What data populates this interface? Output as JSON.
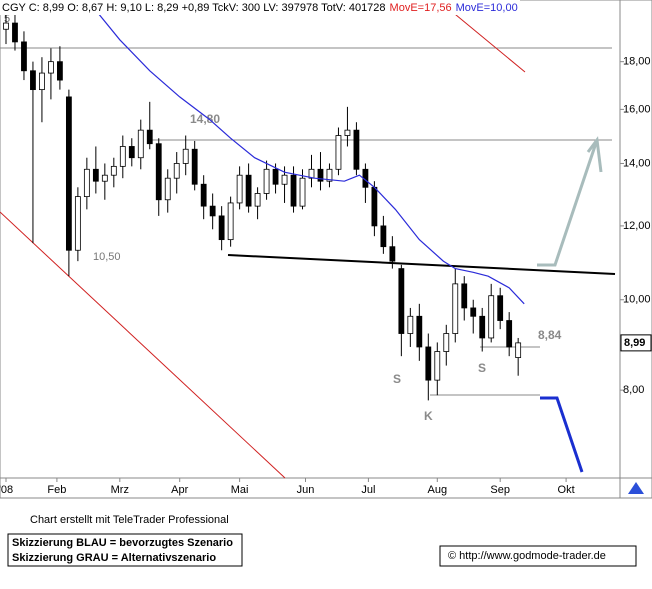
{
  "header": {
    "quote": "CGY C: 8,99 O: 8,67 H: 9,10 L: 8,29 +0,89 TckV: 300 LV: 397978 TotV: 401728",
    "ma_red": "MovE=17,56",
    "ma_blue": "MovE=10,00",
    "corner": "5"
  },
  "chart_data": {
    "type": "candlestick",
    "x": [
      2,
      5,
      8,
      11,
      14,
      17,
      20,
      23,
      26,
      29,
      32,
      35,
      38,
      41,
      44,
      47,
      50,
      53,
      56,
      59,
      62,
      65,
      68,
      71,
      74,
      77,
      80,
      83,
      86,
      89,
      92,
      95,
      98,
      101,
      104,
      107,
      110,
      113,
      116,
      119,
      122,
      125,
      128,
      131,
      134,
      137,
      140,
      143,
      146,
      149,
      152,
      155,
      158,
      161,
      164,
      167,
      170,
      173
    ],
    "open": [
      19.5,
      19.8,
      18.9,
      17.6,
      16.8,
      17.5,
      18.0,
      16.5,
      11.3,
      12.9,
      13.8,
      13.4,
      13.6,
      13.9,
      14.6,
      14.2,
      15.2,
      14.7,
      12.8,
      13.5,
      14.0,
      14.5,
      13.3,
      12.6,
      12.3,
      11.6,
      12.7,
      13.6,
      12.6,
      13.0,
      13.8,
      13.3,
      13.6,
      12.6,
      13.5,
      13.8,
      13.4,
      13.8,
      15.0,
      15.2,
      13.8,
      13.2,
      12.0,
      11.4,
      10.8,
      9.2,
      9.6,
      8.9,
      8.2,
      8.8,
      9.2,
      10.4,
      9.8,
      9.6,
      9.1,
      10.1,
      9.5,
      8.67
    ],
    "high": [
      20.8,
      20.5,
      19.4,
      18.0,
      18.2,
      18.6,
      18.7,
      16.8,
      13.2,
      14.2,
      14.6,
      14.0,
      14.2,
      15.0,
      14.9,
      15.6,
      16.3,
      14.9,
      13.8,
      14.4,
      15.0,
      14.8,
      13.6,
      13.0,
      12.6,
      12.9,
      13.9,
      14.0,
      13.2,
      14.1,
      14.0,
      13.9,
      13.9,
      13.8,
      14.3,
      14.4,
      14.0,
      15.3,
      16.1,
      15.5,
      14.0,
      13.4,
      12.3,
      11.7,
      10.9,
      9.8,
      9.9,
      9.2,
      9.0,
      9.4,
      10.8,
      10.6,
      10.0,
      9.8,
      10.4,
      10.3,
      9.7,
      9.1
    ],
    "low": [
      18.8,
      18.5,
      17.2,
      11.5,
      15.5,
      16.4,
      16.8,
      10.6,
      11.0,
      12.5,
      13.0,
      12.8,
      13.2,
      13.5,
      13.9,
      13.8,
      14.5,
      12.3,
      12.4,
      13.0,
      13.6,
      13.1,
      12.2,
      11.9,
      11.3,
      11.4,
      12.5,
      12.4,
      12.2,
      12.8,
      13.0,
      12.7,
      12.4,
      12.5,
      13.2,
      13.1,
      13.2,
      13.6,
      14.6,
      13.6,
      12.7,
      11.7,
      11.2,
      10.8,
      8.7,
      8.9,
      8.6,
      7.8,
      7.9,
      8.5,
      9.0,
      9.5,
      9.2,
      8.8,
      9.0,
      9.3,
      8.7,
      8.29
    ],
    "close": [
      19.8,
      18.9,
      17.6,
      16.8,
      17.5,
      18.0,
      17.2,
      11.3,
      12.9,
      13.8,
      13.4,
      13.6,
      13.9,
      14.6,
      14.2,
      15.2,
      14.7,
      12.8,
      13.5,
      14.0,
      14.5,
      13.3,
      12.6,
      12.3,
      11.6,
      12.7,
      13.6,
      12.6,
      13.0,
      13.8,
      13.3,
      13.6,
      12.6,
      13.5,
      13.8,
      13.4,
      13.8,
      15.0,
      15.2,
      13.8,
      13.2,
      12.0,
      11.4,
      11.0,
      9.2,
      9.6,
      8.9,
      8.2,
      8.8,
      9.2,
      10.4,
      9.8,
      9.6,
      9.1,
      10.1,
      9.5,
      8.9,
      8.99
    ],
    "color_up": "#ffffff",
    "color_down": "#000000",
    "last_label": "8,99",
    "moving_average": {
      "color": "#2b2bd9",
      "x": [
        30,
        40,
        50,
        60,
        70,
        77,
        85,
        95,
        105,
        115,
        120,
        125,
        132,
        140,
        148,
        152,
        158,
        163,
        170,
        175
      ],
      "values": [
        20.8,
        19.0,
        17.6,
        16.5,
        15.6,
        14.9,
        14.2,
        13.7,
        13.5,
        13.4,
        13.6,
        13.2,
        12.5,
        11.6,
        11.0,
        10.8,
        10.7,
        10.6,
        10.3,
        9.9
      ]
    },
    "log_scale": true,
    "ylim": [
      6.44,
      20.96
    ],
    "yticks": [
      {
        "value": 8,
        "label": "8,00"
      },
      {
        "value": 10,
        "label": "10,00"
      },
      {
        "value": 12,
        "label": "12,00"
      },
      {
        "value": 14,
        "label": "14,00"
      },
      {
        "value": 16,
        "label": "16,00"
      },
      {
        "value": 18,
        "label": "18,00"
      }
    ],
    "xlim": [
      0,
      207
    ],
    "xticks": [
      {
        "value": 2,
        "label": "'08"
      },
      {
        "value": 19,
        "label": "Feb"
      },
      {
        "value": 40,
        "label": "Mrz"
      },
      {
        "value": 60,
        "label": "Apr"
      },
      {
        "value": 80,
        "label": "Mai"
      },
      {
        "value": 102,
        "label": "Jun"
      },
      {
        "value": 123,
        "label": "Jul"
      },
      {
        "value": 146,
        "label": "Aug"
      },
      {
        "value": 167,
        "label": "Sep"
      },
      {
        "value": 189,
        "label": "Okt"
      }
    ]
  },
  "annotations": {
    "level_high": "14,80",
    "level_low": "10,50",
    "level_now": "8,84",
    "s_left": "S",
    "k": "K",
    "s_right": "S"
  },
  "footer": {
    "credit": "Chart erstellt mit TeleTrader Professional",
    "blue": "Skizzierung BLAU = bevorzugtes Szenario",
    "grey": "Skizzierung GRAU = Alternativszenario",
    "site": "© http://www.godmode-trader.de"
  }
}
